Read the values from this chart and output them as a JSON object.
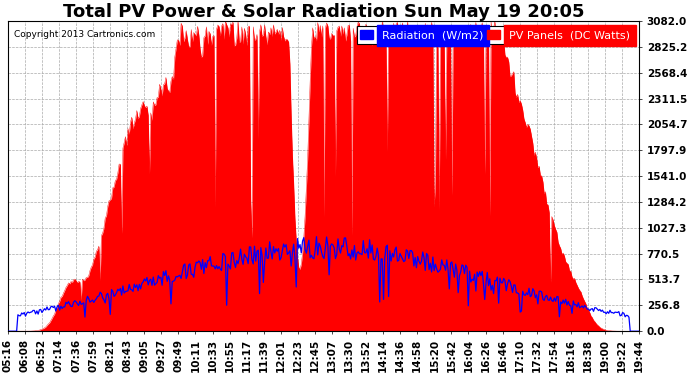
{
  "title": "Total PV Power & Solar Radiation Sun May 19 20:05",
  "copyright": "Copyright 2013 Cartronics.com",
  "legend_blue": "Radiation  (W/m2)",
  "legend_red": "PV Panels  (DC Watts)",
  "ymax": 3082.0,
  "yticks": [
    0.0,
    256.8,
    513.7,
    770.5,
    1027.3,
    1284.2,
    1541.0,
    1797.9,
    2054.7,
    2311.5,
    2568.4,
    2825.2,
    3082.0
  ],
  "xtick_labels": [
    "05:16",
    "06:08",
    "06:52",
    "07:14",
    "07:36",
    "07:59",
    "08:21",
    "08:43",
    "09:05",
    "09:27",
    "09:49",
    "10:11",
    "10:33",
    "10:55",
    "11:17",
    "11:39",
    "12:01",
    "12:23",
    "12:45",
    "13:07",
    "13:30",
    "13:52",
    "14:14",
    "14:36",
    "14:58",
    "15:20",
    "15:42",
    "16:04",
    "16:26",
    "16:46",
    "17:10",
    "17:32",
    "17:54",
    "18:16",
    "18:38",
    "19:00",
    "19:22",
    "19:44"
  ],
  "background_color": "#ffffff",
  "plot_bg_color": "#ffffff",
  "red_color": "#ff0000",
  "blue_color": "#0000ff",
  "grid_color": "#aaaaaa",
  "title_fontsize": 13,
  "axis_fontsize": 7.5,
  "legend_fontsize": 8
}
